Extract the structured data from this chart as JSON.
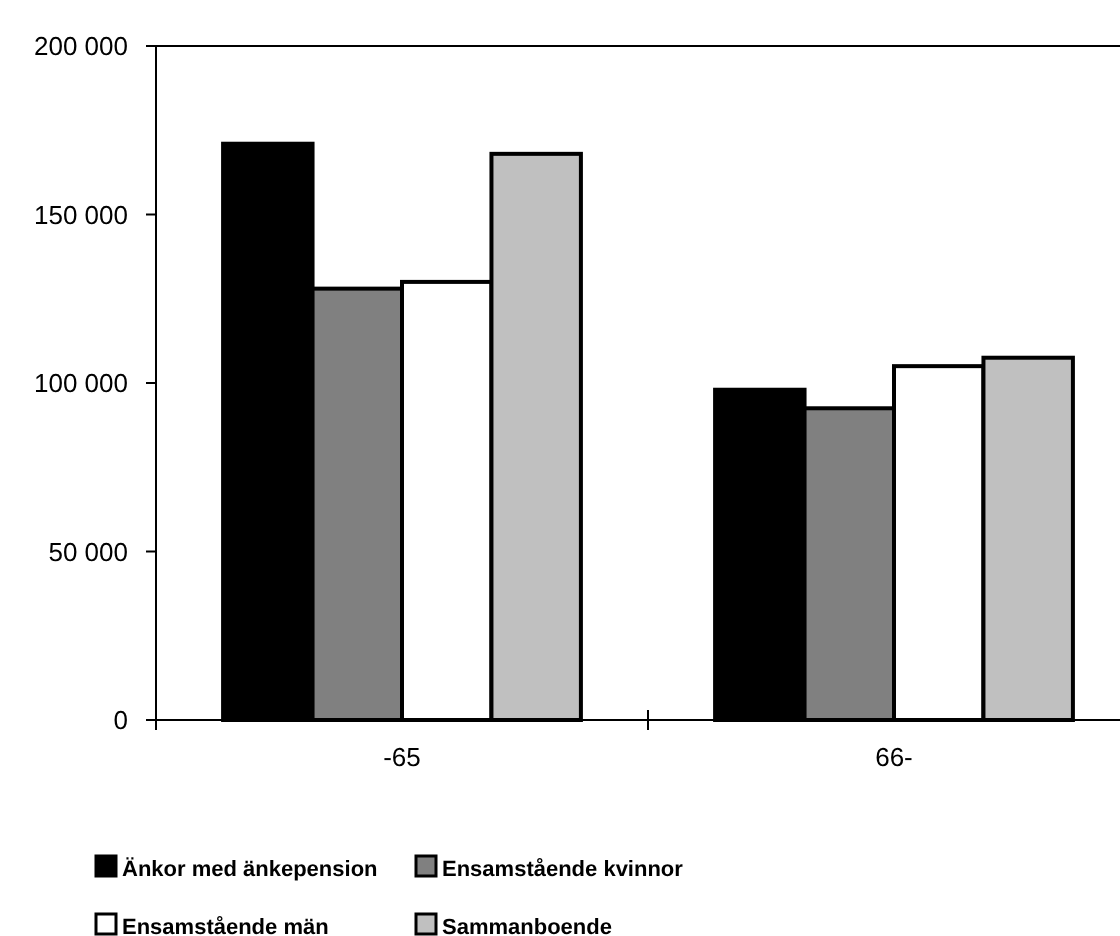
{
  "chart_data": {
    "type": "bar",
    "categories": [
      "-65",
      "66-"
    ],
    "series": [
      {
        "name": "Änkor med änkepension",
        "color": "#000000",
        "values": [
          171000,
          98000
        ]
      },
      {
        "name": "Ensamstående kvinnor",
        "color": "#808080",
        "values": [
          128000,
          92500
        ]
      },
      {
        "name": "Ensamstående män",
        "color": "#ffffff",
        "values": [
          130000,
          105000
        ]
      },
      {
        "name": "Sammanboende",
        "color": "#c0c0c0",
        "values": [
          168000,
          107500
        ]
      }
    ],
    "ylim": [
      0,
      200000
    ],
    "yticks": [
      {
        "value": 0,
        "label": "0"
      },
      {
        "value": 50000,
        "label": "50 000"
      },
      {
        "value": 100000,
        "label": "100 000"
      },
      {
        "value": 150000,
        "label": "150 000"
      },
      {
        "value": 200000,
        "label": "200 000"
      }
    ],
    "grid": false,
    "legend": "bottom"
  }
}
